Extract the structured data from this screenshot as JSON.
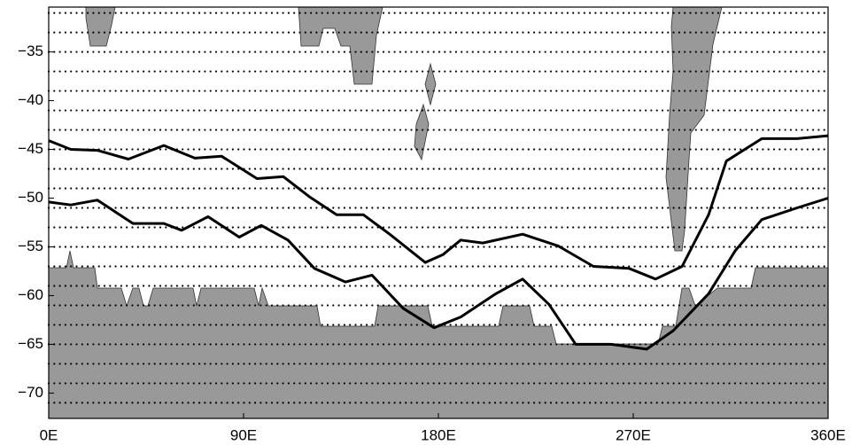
{
  "chart_data": {
    "type": "line",
    "xlim": [
      0,
      360
    ],
    "ylim": [
      -72.6,
      -30.4
    ],
    "xticks": [
      {
        "value": 0,
        "label": "0E"
      },
      {
        "value": 90,
        "label": "90E"
      },
      {
        "value": 180,
        "label": "180E"
      },
      {
        "value": 270,
        "label": "270E"
      },
      {
        "value": 360,
        "label": "360E"
      }
    ],
    "yticks": [
      {
        "value": -35,
        "label": "−35"
      },
      {
        "value": -40,
        "label": "−40"
      },
      {
        "value": -45,
        "label": "−45"
      },
      {
        "value": -50,
        "label": "−50"
      },
      {
        "value": -55,
        "label": "−55"
      },
      {
        "value": -60,
        "label": "−60"
      },
      {
        "value": -65,
        "label": "−65"
      },
      {
        "value": -70,
        "label": "−70"
      }
    ],
    "yminor_ticks": [
      -31,
      -33,
      -35,
      -37,
      -39,
      -41,
      -43,
      -45,
      -47,
      -49,
      -51,
      -53,
      -55,
      -57,
      -59,
      -61,
      -63,
      -65,
      -67,
      -69,
      -71
    ],
    "grid": true,
    "series": [
      {
        "color": "#000000",
        "x": [
          0,
          10.2,
          22.5,
          36.8,
          53.2,
          67.5,
          79.8,
          96.2,
          108.4,
          120.7,
          133.0,
          145.3,
          157.5,
          173.9,
          182.1,
          190.3,
          200.5,
          218.9,
          235.3,
          251.6,
          268.0,
          280.3,
          292.6,
          304.8,
          313.0,
          329.4,
          345.7,
          360
        ],
        "values": [
          -44.1,
          -45.0,
          -45.1,
          -46.0,
          -44.6,
          -45.9,
          -45.7,
          -48.0,
          -47.8,
          -49.9,
          -51.7,
          -51.7,
          -53.7,
          -56.6,
          -55.8,
          -54.3,
          -54.6,
          -53.7,
          -54.9,
          -57.0,
          -57.2,
          -58.3,
          -57.0,
          -51.7,
          -46.2,
          -43.9,
          -43.9,
          -43.6
        ]
      },
      {
        "color": "#000000",
        "x": [
          0,
          10.2,
          22.5,
          38.9,
          53.2,
          61.4,
          73.6,
          88.0,
          98.2,
          110.5,
          122.7,
          137.1,
          149.3,
          163.7,
          178.0,
          190.3,
          206.6,
          218.9,
          231.1,
          243.4,
          259.8,
          276.2,
          288.5,
          304.8,
          317.1,
          329.4,
          345.7,
          360
        ],
        "values": [
          -50.4,
          -50.7,
          -50.2,
          -52.6,
          -52.6,
          -53.3,
          -51.9,
          -54.0,
          -52.8,
          -54.3,
          -57.2,
          -58.6,
          -57.9,
          -61.3,
          -63.3,
          -62.2,
          -59.8,
          -58.3,
          -60.9,
          -65.0,
          -65.0,
          -65.5,
          -63.6,
          -59.8,
          -55.4,
          -52.2,
          -51.0,
          -50.0
        ]
      }
    ]
  }
}
